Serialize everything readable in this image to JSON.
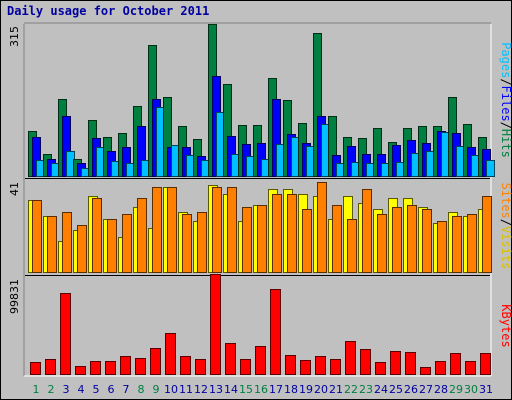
{
  "chart_data": {
    "type": "bar",
    "title": "Daily usage for October 2011",
    "categories": [
      "1",
      "2",
      "3",
      "4",
      "5",
      "6",
      "7",
      "8",
      "9",
      "10",
      "11",
      "12",
      "13",
      "14",
      "15",
      "16",
      "17",
      "18",
      "19",
      "20",
      "21",
      "22",
      "23",
      "24",
      "25",
      "26",
      "27",
      "28",
      "29",
      "30",
      "31"
    ],
    "weekend_days": [
      "1",
      "2",
      "8",
      "9",
      "15",
      "16",
      "22",
      "23",
      "29",
      "30"
    ],
    "panels": [
      {
        "ymax_label": "315",
        "ymax": 315,
        "labels": [
          "Pages",
          "/",
          "Files",
          "/",
          "Hits"
        ],
        "series": [
          {
            "name": "Hits",
            "color": "#008040",
            "values": [
              94,
              48,
              161,
              37,
              118,
              83,
              90,
              147,
              272,
              164,
              104,
              79,
              315,
              191,
              108,
              108,
              203,
              158,
              111,
              297,
              126,
              83,
              81,
              101,
              73,
              101,
              104,
              105,
              164,
              109,
              83
            ]
          },
          {
            "name": "Files",
            "color": "#0000ff",
            "values": [
              83,
              38,
              126,
              28,
              80,
              53,
              62,
              104,
              160,
              62,
              62,
              44,
              208,
              84,
              67,
              71,
              160,
              88,
              69,
              126,
              46,
              64,
              48,
              47,
              65,
              77,
              70,
              95,
              90,
              62,
              58
            ]
          },
          {
            "name": "Pages",
            "color": "#00c0ff",
            "values": [
              34,
              29,
              54,
              18,
              61,
              32,
              29,
              35,
              144,
              66,
              46,
              35,
              134,
              47,
              44,
              37,
              67,
              83,
              64,
              109,
              29,
              30,
              28,
              28,
              31,
              50,
              53,
              93,
              63,
              45,
              35
            ]
          }
        ]
      },
      {
        "ymax_label": "41",
        "ymax": 41,
        "labels": [
          "Sites",
          "/",
          "Visits"
        ],
        "series": [
          {
            "name": "Visits",
            "color": "#ffff00",
            "values": [
              32,
              25,
              14,
              19,
              34,
              24,
              16,
              29,
              20,
              38,
              27,
              23,
              39,
              35,
              23,
              30,
              37,
              37,
              35,
              34,
              24,
              34,
              31,
              28,
              33,
              33,
              29,
              22,
              27,
              25,
              28
            ]
          },
          {
            "name": "Sites",
            "color": "#ff8000",
            "values": [
              32,
              25,
              27,
              21,
              33,
              24,
              26,
              33,
              38,
              38,
              26,
              27,
              38,
              38,
              29,
              30,
              35,
              35,
              28,
              40,
              30,
              24,
              37,
              26,
              29,
              30,
              28,
              23,
              25,
              26,
              34
            ]
          }
        ]
      },
      {
        "ymax_label": "99831",
        "ymax": 99831,
        "labels": [
          "KBytes"
        ],
        "series": [
          {
            "name": "KBytes",
            "color": "#ff0000",
            "values": [
              13000,
              16000,
              84000,
              9000,
              14000,
              14000,
              19000,
              17000,
              27000,
              43000,
              19000,
              16000,
              103000,
              33000,
              16000,
              30000,
              88000,
              20000,
              15000,
              19000,
              16000,
              35000,
              26000,
              13000,
              24000,
              23000,
              8000,
              14000,
              22000,
              14000,
              22000
            ]
          }
        ]
      }
    ]
  },
  "colors": {
    "background": "#c0c0c0",
    "title": "#0000a0",
    "weekend_tick": "#008040",
    "weekday_tick": "#0000a0",
    "separator": "#000000"
  }
}
